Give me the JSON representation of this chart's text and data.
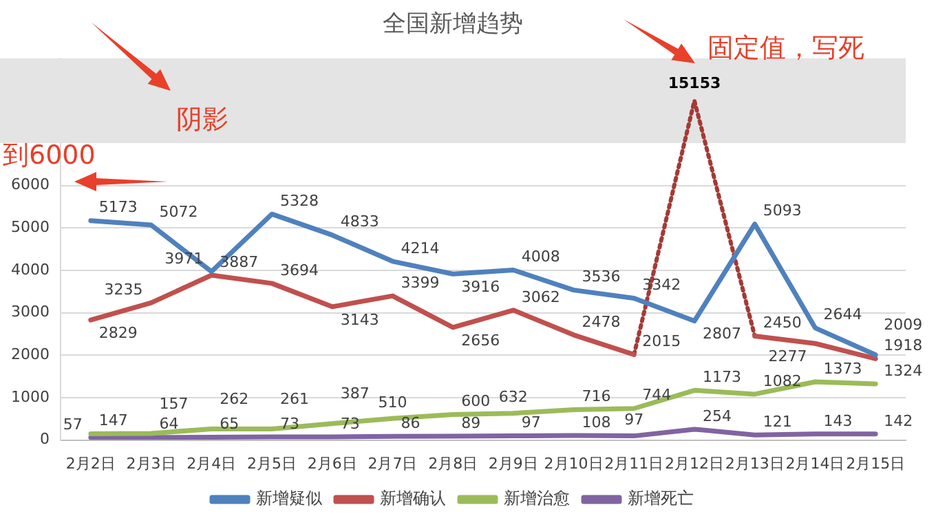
{
  "chart_data": {
    "type": "line",
    "title": "全国新增趋势",
    "categories": [
      "2月2日",
      "2月3日",
      "2月4日",
      "2月5日",
      "2月6日",
      "2月7日",
      "2月8日",
      "2月9日",
      "2月10日",
      "2月11日",
      "2月12日",
      "2月13日",
      "2月14日",
      "2月15日"
    ],
    "series": [
      {
        "name": "新增疑似",
        "color": "#4f81bd",
        "values": [
          5173,
          5072,
          3971,
          5328,
          4833,
          4214,
          3916,
          4008,
          3536,
          3342,
          2807,
          5093,
          2644,
          2009
        ]
      },
      {
        "name": "新增确认",
        "color": "#c0504d",
        "values": [
          2829,
          3235,
          3887,
          3694,
          3143,
          3399,
          2656,
          3062,
          2478,
          2015,
          null,
          2450,
          2277,
          1918
        ]
      },
      {
        "name": "新增治愈",
        "color": "#9bbb59",
        "values": [
          147,
          157,
          262,
          261,
          387,
          510,
          600,
          632,
          716,
          744,
          1173,
          1082,
          1373,
          1324
        ]
      },
      {
        "name": "新增死亡",
        "color": "#8064a2",
        "values": [
          57,
          64,
          65,
          73,
          73,
          86,
          89,
          97,
          108,
          97,
          254,
          121,
          143,
          142
        ]
      },
      {
        "color": "#a33a36",
        "line_style": "dotted",
        "values": [
          null,
          null,
          null,
          null,
          null,
          null,
          null,
          null,
          null,
          2015,
          8000,
          2450,
          null,
          null
        ],
        "value_labels": [
          null,
          null,
          null,
          null,
          null,
          null,
          null,
          null,
          null,
          null,
          null,
          null,
          null,
          null
        ]
      }
    ],
    "ylim": [
      0,
      9000
    ],
    "yticks": [
      0,
      1000,
      2000,
      3000,
      4000,
      5000,
      6000
    ],
    "grid": "y",
    "legend": "bottom",
    "data_labels": true,
    "marker": "none",
    "bands": [
      {
        "axis": "y",
        "from": 7000,
        "to": 9000,
        "color": "#e4e4e4"
      }
    ],
    "annotations": [
      {
        "text": "15153",
        "x": "2月12日",
        "y": 8000
      },
      "阴影",
      "到6000",
      "固定值，写死"
    ]
  }
}
